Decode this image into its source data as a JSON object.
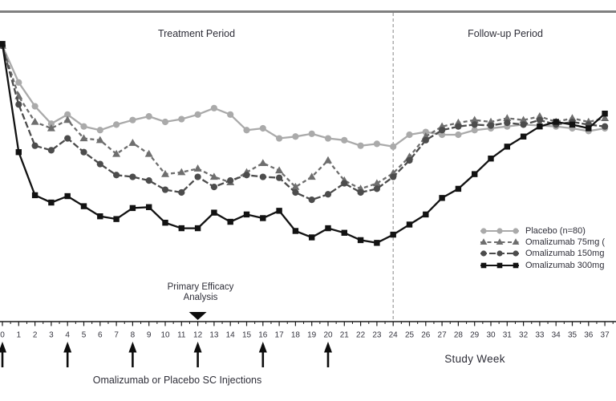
{
  "chart": {
    "treatment_period_label": "Treatment Period",
    "followup_period_label": "Follow-up Period",
    "xlabel": "Study Week",
    "injections_label": "Omalizumab or Placebo SC Injections",
    "efficacy_label_line1": "Primary Efficacy",
    "efficacy_label_line2": "Analysis"
  },
  "chart_data": {
    "type": "line",
    "x": [
      0,
      1,
      2,
      3,
      4,
      5,
      6,
      7,
      8,
      9,
      10,
      11,
      12,
      13,
      14,
      15,
      16,
      17,
      18,
      19,
      20,
      21,
      22,
      23,
      24,
      25,
      26,
      27,
      28,
      29,
      30,
      31,
      32,
      33,
      34,
      35,
      36,
      37
    ],
    "xlabel": "Study Week",
    "ylabel": "",
    "y_axis_note": "y-axis is cropped out of the screenshot; values are estimated arbitrary score units",
    "ylim": [
      0,
      31
    ],
    "xlim": [
      0,
      37.7
    ],
    "grid": false,
    "legend_position": "right-middle",
    "treatment_followup_divider_week": 24,
    "injection_weeks": [
      0,
      4,
      8,
      12,
      16,
      20
    ],
    "primary_efficacy_week": 12,
    "series": [
      {
        "name": "Placebo",
        "legend_label": "Placebo (n=80)",
        "marker": "circle",
        "line_style": "solid",
        "color": "#aaaaaa",
        "values": [
          30,
          26.0,
          23.4,
          21.5,
          22.5,
          21.2,
          20.8,
          21.4,
          21.9,
          22.3,
          21.7,
          22.0,
          22.5,
          23.2,
          22.5,
          20.8,
          21.0,
          19.9,
          20.1,
          20.4,
          19.9,
          19.7,
          19.1,
          19.3,
          19.0,
          20.3,
          20.6,
          20.3,
          20.3,
          20.8,
          21.0,
          21.2,
          21.4,
          21.3,
          21.2,
          21.0,
          20.7,
          21.0
        ]
      },
      {
        "name": "Omalizumab 75mg",
        "legend_label": "Omalizumab 75mg (",
        "marker": "triangle",
        "line_style": "dashed",
        "color": "#6e6e6e",
        "values": [
          30,
          24.5,
          21.7,
          21.0,
          21.9,
          19.9,
          19.7,
          18.2,
          19.4,
          18.2,
          16.0,
          16.2,
          16.6,
          15.7,
          15.1,
          16.2,
          17.2,
          16.4,
          14.6,
          15.7,
          17.5,
          15.3,
          14.4,
          15.0,
          16.1,
          17.9,
          20.1,
          21.2,
          21.6,
          21.9,
          21.7,
          22.1,
          21.9,
          22.3,
          21.7,
          22.1,
          21.7,
          22.1
        ]
      },
      {
        "name": "Omalizumab 150mg",
        "legend_label": "Omalizumab 150mg",
        "marker": "circle",
        "line_style": "dashdot",
        "color": "#4c4c4c",
        "values": [
          30,
          23.6,
          19.1,
          18.6,
          19.9,
          18.4,
          17.1,
          15.9,
          15.7,
          15.3,
          14.3,
          14.0,
          15.7,
          14.6,
          15.3,
          15.9,
          15.7,
          15.6,
          14.0,
          13.2,
          13.8,
          15.0,
          14.0,
          14.4,
          15.7,
          17.5,
          19.7,
          20.8,
          21.2,
          21.4,
          21.3,
          21.6,
          21.4,
          21.9,
          21.4,
          21.7,
          21.4,
          21.2
        ]
      },
      {
        "name": "Omalizumab 300mg",
        "legend_label": "Omalizumab 300mg",
        "marker": "square",
        "line_style": "solid",
        "color": "#121212",
        "values": [
          30.2,
          18.4,
          13.7,
          12.9,
          13.6,
          12.5,
          11.4,
          11.1,
          12.3,
          12.4,
          10.7,
          10.1,
          10.1,
          11.8,
          10.8,
          11.6,
          11.2,
          12.0,
          9.8,
          9.1,
          10.1,
          9.6,
          8.8,
          8.5,
          9.4,
          10.5,
          11.6,
          13.4,
          14.4,
          16.0,
          17.7,
          19.0,
          20.1,
          21.2,
          21.7,
          21.4,
          21.0,
          22.6
        ]
      }
    ]
  },
  "colors": {
    "top_border": "#7f7f7f",
    "divider": "#999999",
    "axis": "#1a1a1a",
    "tick_label": "#33333d",
    "arrow": "#0d0d0d"
  }
}
